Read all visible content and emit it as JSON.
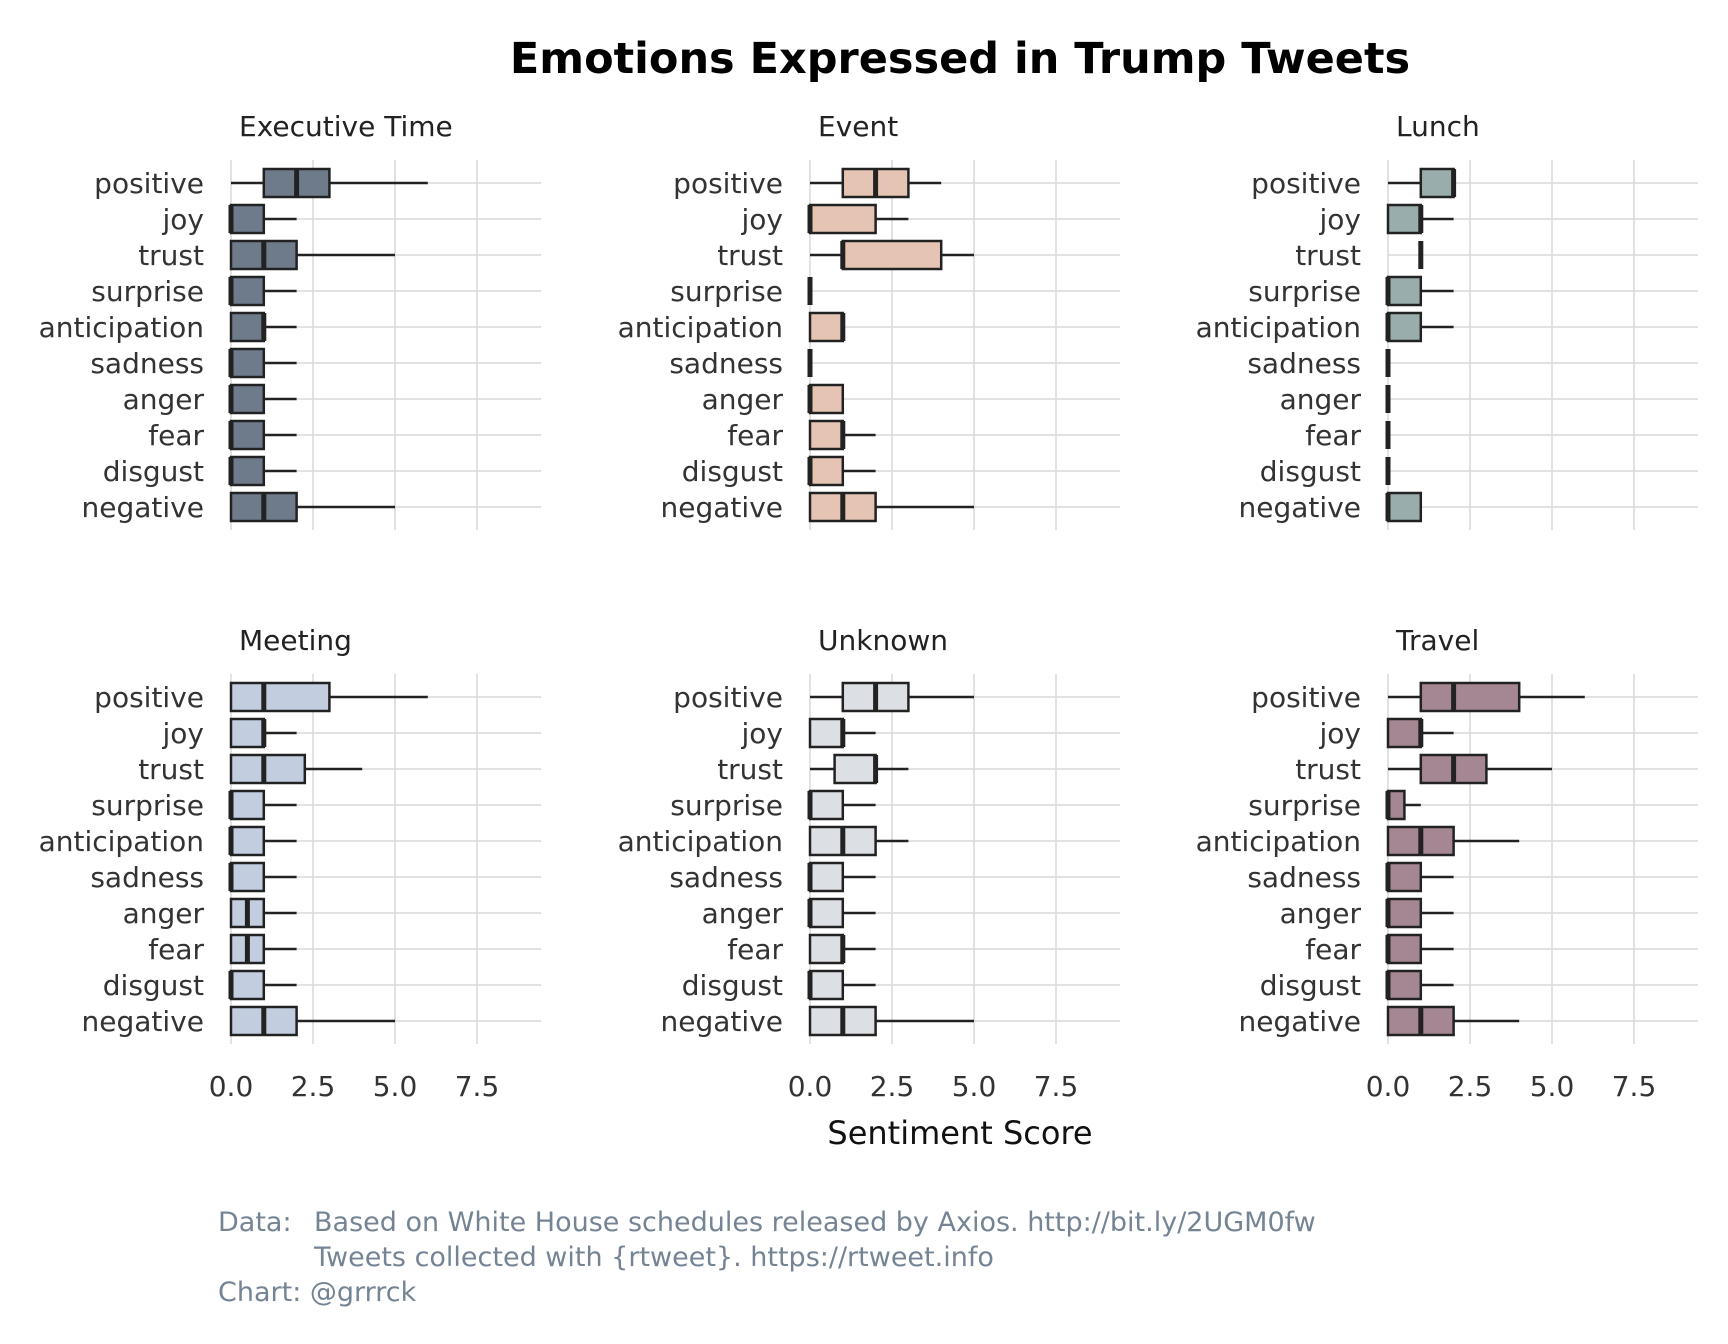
{
  "colors": {
    "Executive Time": "#6e7b8b",
    "Event": "#e6c4b4",
    "Lunch": "#9aadad",
    "Meeting": "#c2cedf",
    "Unknown": "#dce0e4",
    "Travel": "#a48793"
  },
  "chart_data": {
    "type": "box",
    "title": "Emotions Expressed in Trump Tweets",
    "xlabel": "Sentiment Score",
    "ylabel": "",
    "xlim": [
      0,
      9.5
    ],
    "x_ticks": [
      "0.0",
      "2.5",
      "5.0",
      "7.5"
    ],
    "categories": [
      "positive",
      "joy",
      "trust",
      "surprise",
      "anticipation",
      "sadness",
      "anger",
      "fear",
      "disgust",
      "negative"
    ],
    "grid": true,
    "facets": [
      {
        "name": "Executive Time",
        "boxes": [
          {
            "category": "positive",
            "lower": 0,
            "q1": 1,
            "median": 2,
            "q3": 3,
            "upper": 6
          },
          {
            "category": "joy",
            "lower": 0,
            "q1": 0,
            "median": 0,
            "q3": 1,
            "upper": 2
          },
          {
            "category": "trust",
            "lower": 0,
            "q1": 0,
            "median": 1,
            "q3": 2,
            "upper": 5
          },
          {
            "category": "surprise",
            "lower": 0,
            "q1": 0,
            "median": 0,
            "q3": 1,
            "upper": 2
          },
          {
            "category": "anticipation",
            "lower": 0,
            "q1": 0,
            "median": 1,
            "q3": 1,
            "upper": 2
          },
          {
            "category": "sadness",
            "lower": 0,
            "q1": 0,
            "median": 0,
            "q3": 1,
            "upper": 2
          },
          {
            "category": "anger",
            "lower": 0,
            "q1": 0,
            "median": 0,
            "q3": 1,
            "upper": 2
          },
          {
            "category": "fear",
            "lower": 0,
            "q1": 0,
            "median": 0,
            "q3": 1,
            "upper": 2
          },
          {
            "category": "disgust",
            "lower": 0,
            "q1": 0,
            "median": 0,
            "q3": 1,
            "upper": 2
          },
          {
            "category": "negative",
            "lower": 0,
            "q1": 0,
            "median": 1,
            "q3": 2,
            "upper": 5
          }
        ]
      },
      {
        "name": "Event",
        "boxes": [
          {
            "category": "positive",
            "lower": 0,
            "q1": 1,
            "median": 2,
            "q3": 3,
            "upper": 4
          },
          {
            "category": "joy",
            "lower": 0,
            "q1": 0,
            "median": 0,
            "q3": 2,
            "upper": 3
          },
          {
            "category": "trust",
            "lower": 0,
            "q1": 1,
            "median": 1,
            "q3": 4,
            "upper": 5
          },
          {
            "category": "surprise",
            "lower": 0,
            "q1": 0,
            "median": 0,
            "q3": 0,
            "upper": 0
          },
          {
            "category": "anticipation",
            "lower": 0,
            "q1": 0,
            "median": 1,
            "q3": 1,
            "upper": 1
          },
          {
            "category": "sadness",
            "lower": 0,
            "q1": 0,
            "median": 0,
            "q3": 0,
            "upper": 0
          },
          {
            "category": "anger",
            "lower": 0,
            "q1": 0,
            "median": 0,
            "q3": 1,
            "upper": 1
          },
          {
            "category": "fear",
            "lower": 0,
            "q1": 0,
            "median": 1,
            "q3": 1,
            "upper": 2
          },
          {
            "category": "disgust",
            "lower": 0,
            "q1": 0,
            "median": 0,
            "q3": 1,
            "upper": 2
          },
          {
            "category": "negative",
            "lower": 0,
            "q1": 0,
            "median": 1,
            "q3": 2,
            "upper": 5
          }
        ]
      },
      {
        "name": "Lunch",
        "boxes": [
          {
            "category": "positive",
            "lower": 0,
            "q1": 1,
            "median": 2,
            "q3": 2,
            "upper": 2
          },
          {
            "category": "joy",
            "lower": 0,
            "q1": 0,
            "median": 1,
            "q3": 1,
            "upper": 2
          },
          {
            "category": "trust",
            "lower": 1,
            "q1": 1,
            "median": 1,
            "q3": 1,
            "upper": 1
          },
          {
            "category": "surprise",
            "lower": 0,
            "q1": 0,
            "median": 0,
            "q3": 1,
            "upper": 2
          },
          {
            "category": "anticipation",
            "lower": 0,
            "q1": 0,
            "median": 0,
            "q3": 1,
            "upper": 2
          },
          {
            "category": "sadness",
            "lower": 0,
            "q1": 0,
            "median": 0,
            "q3": 0,
            "upper": 0
          },
          {
            "category": "anger",
            "lower": 0,
            "q1": 0,
            "median": 0,
            "q3": 0,
            "upper": 0
          },
          {
            "category": "fear",
            "lower": 0,
            "q1": 0,
            "median": 0,
            "q3": 0,
            "upper": 0
          },
          {
            "category": "disgust",
            "lower": 0,
            "q1": 0,
            "median": 0,
            "q3": 0,
            "upper": 0
          },
          {
            "category": "negative",
            "lower": 0,
            "q1": 0,
            "median": 0,
            "q3": 1,
            "upper": 1
          }
        ]
      },
      {
        "name": "Meeting",
        "boxes": [
          {
            "category": "positive",
            "lower": 0,
            "q1": 0,
            "median": 1,
            "q3": 3,
            "upper": 6
          },
          {
            "category": "joy",
            "lower": 0,
            "q1": 0,
            "median": 1,
            "q3": 1,
            "upper": 2
          },
          {
            "category": "trust",
            "lower": 0,
            "q1": 0,
            "median": 1,
            "q3": 2.25,
            "upper": 4
          },
          {
            "category": "surprise",
            "lower": 0,
            "q1": 0,
            "median": 0,
            "q3": 1,
            "upper": 2
          },
          {
            "category": "anticipation",
            "lower": 0,
            "q1": 0,
            "median": 0,
            "q3": 1,
            "upper": 2
          },
          {
            "category": "sadness",
            "lower": 0,
            "q1": 0,
            "median": 0,
            "q3": 1,
            "upper": 2
          },
          {
            "category": "anger",
            "lower": 0,
            "q1": 0,
            "median": 0.5,
            "q3": 1,
            "upper": 2
          },
          {
            "category": "fear",
            "lower": 0,
            "q1": 0,
            "median": 0.5,
            "q3": 1,
            "upper": 2
          },
          {
            "category": "disgust",
            "lower": 0,
            "q1": 0,
            "median": 0,
            "q3": 1,
            "upper": 2
          },
          {
            "category": "negative",
            "lower": 0,
            "q1": 0,
            "median": 1,
            "q3": 2,
            "upper": 5
          }
        ]
      },
      {
        "name": "Unknown",
        "boxes": [
          {
            "category": "positive",
            "lower": 0,
            "q1": 1,
            "median": 2,
            "q3": 3,
            "upper": 5
          },
          {
            "category": "joy",
            "lower": 0,
            "q1": 0,
            "median": 1,
            "q3": 1,
            "upper": 2
          },
          {
            "category": "trust",
            "lower": 0,
            "q1": 0.75,
            "median": 2,
            "q3": 2,
            "upper": 3
          },
          {
            "category": "surprise",
            "lower": 0,
            "q1": 0,
            "median": 0,
            "q3": 1,
            "upper": 2
          },
          {
            "category": "anticipation",
            "lower": 0,
            "q1": 0,
            "median": 1,
            "q3": 2,
            "upper": 3
          },
          {
            "category": "sadness",
            "lower": 0,
            "q1": 0,
            "median": 0,
            "q3": 1,
            "upper": 2
          },
          {
            "category": "anger",
            "lower": 0,
            "q1": 0,
            "median": 0,
            "q3": 1,
            "upper": 2
          },
          {
            "category": "fear",
            "lower": 0,
            "q1": 0,
            "median": 1,
            "q3": 1,
            "upper": 2
          },
          {
            "category": "disgust",
            "lower": 0,
            "q1": 0,
            "median": 0,
            "q3": 1,
            "upper": 2
          },
          {
            "category": "negative",
            "lower": 0,
            "q1": 0,
            "median": 1,
            "q3": 2,
            "upper": 5
          }
        ]
      },
      {
        "name": "Travel",
        "boxes": [
          {
            "category": "positive",
            "lower": 0,
            "q1": 1,
            "median": 2,
            "q3": 4,
            "upper": 6
          },
          {
            "category": "joy",
            "lower": 0,
            "q1": 0,
            "median": 1,
            "q3": 1,
            "upper": 2
          },
          {
            "category": "trust",
            "lower": 0,
            "q1": 1,
            "median": 2,
            "q3": 3,
            "upper": 5
          },
          {
            "category": "surprise",
            "lower": 0,
            "q1": 0,
            "median": 0,
            "q3": 0.5,
            "upper": 1
          },
          {
            "category": "anticipation",
            "lower": 0,
            "q1": 0,
            "median": 1,
            "q3": 2,
            "upper": 4
          },
          {
            "category": "sadness",
            "lower": 0,
            "q1": 0,
            "median": 0,
            "q3": 1,
            "upper": 2
          },
          {
            "category": "anger",
            "lower": 0,
            "q1": 0,
            "median": 0,
            "q3": 1,
            "upper": 2
          },
          {
            "category": "fear",
            "lower": 0,
            "q1": 0,
            "median": 0,
            "q3": 1,
            "upper": 2
          },
          {
            "category": "disgust",
            "lower": 0,
            "q1": 0,
            "median": 0,
            "q3": 1,
            "upper": 2
          },
          {
            "category": "negative",
            "lower": 0,
            "q1": 0,
            "median": 1,
            "q3": 2,
            "upper": 4
          }
        ]
      }
    ]
  },
  "caption": {
    "data_label": "Data:",
    "line1": "Based on White House schedules released by Axios. http://bit.ly/2UGM0fw",
    "line2": "Tweets collected with {rtweet}. https://rtweet.info",
    "chart_line": "Chart: @grrrck"
  }
}
